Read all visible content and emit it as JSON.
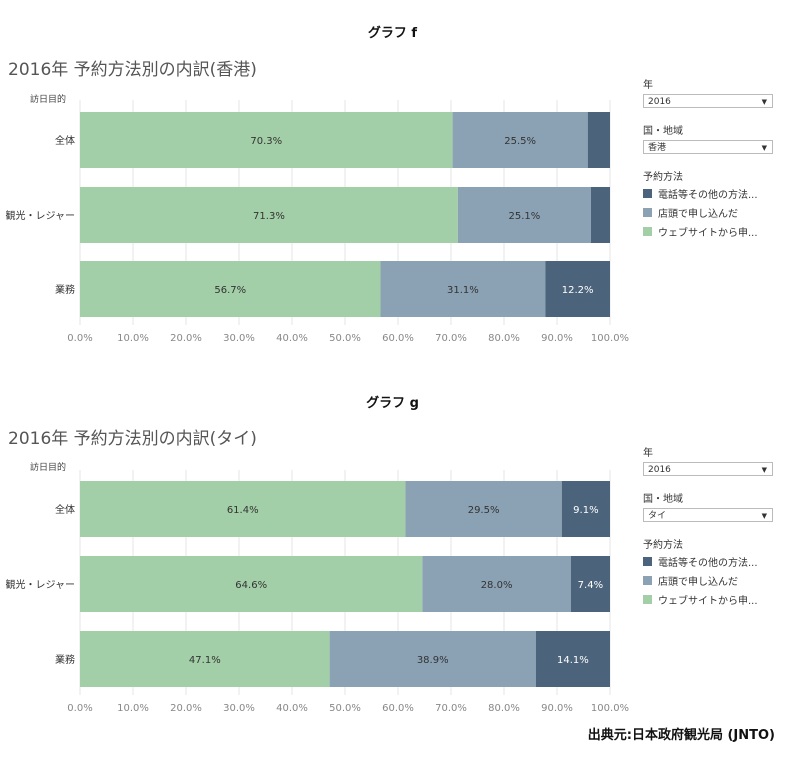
{
  "colors": {
    "web": "#a2cfa7",
    "store": "#8ba2b5",
    "phone": "#4c647b"
  },
  "chart_data": [
    {
      "type": "bar",
      "orientation": "horizontal",
      "stacked": true,
      "graph_label": "グラフ f",
      "title": "2016年 予約方法別の内訳(香港)",
      "ylabel": "訪日目的",
      "categories": [
        "全体",
        "観光・レジャー",
        "業務"
      ],
      "series": [
        {
          "name": "ウェブサイトから申...",
          "values": [
            70.3,
            71.3,
            56.7
          ],
          "labels": [
            "70.3%",
            "71.3%",
            "56.7%"
          ],
          "color": "#a2cfa7"
        },
        {
          "name": "店頭で申し込んだ",
          "values": [
            25.5,
            25.1,
            31.1
          ],
          "labels": [
            "25.5%",
            "25.1%",
            "31.1%"
          ],
          "color": "#8ba2b5"
        },
        {
          "name": "電話等その他の方法...",
          "values": [
            4.2,
            3.6,
            12.2
          ],
          "labels": [
            "",
            "",
            "12.2%"
          ],
          "color": "#4c647b"
        }
      ],
      "xticks": [
        "0.0%",
        "10.0%",
        "20.0%",
        "30.0%",
        "40.0%",
        "50.0%",
        "60.0%",
        "70.0%",
        "80.0%",
        "90.0%",
        "100.0%"
      ],
      "xlim": [
        0,
        100
      ],
      "filters": {
        "year_label": "年",
        "year_value": "2016",
        "region_label": "国・地域",
        "region_value": "香港",
        "method_label": "予約方法"
      }
    },
    {
      "type": "bar",
      "orientation": "horizontal",
      "stacked": true,
      "graph_label": "グラフ g",
      "title": "2016年 予約方法別の内訳(タイ)",
      "ylabel": "訪日目的",
      "categories": [
        "全体",
        "観光・レジャー",
        "業務"
      ],
      "series": [
        {
          "name": "ウェブサイトから申...",
          "values": [
            61.4,
            64.6,
            47.1
          ],
          "labels": [
            "61.4%",
            "64.6%",
            "47.1%"
          ],
          "color": "#a2cfa7"
        },
        {
          "name": "店頭で申し込んだ",
          "values": [
            29.5,
            28.0,
            38.9
          ],
          "labels": [
            "29.5%",
            "28.0%",
            "38.9%"
          ],
          "color": "#8ba2b5"
        },
        {
          "name": "電話等その他の方法...",
          "values": [
            9.1,
            7.4,
            14.1
          ],
          "labels": [
            "9.1%",
            "7.4%",
            "14.1%"
          ],
          "color": "#4c647b"
        }
      ],
      "xticks": [
        "0.0%",
        "10.0%",
        "20.0%",
        "30.0%",
        "40.0%",
        "50.0%",
        "60.0%",
        "70.0%",
        "80.0%",
        "90.0%",
        "100.0%"
      ],
      "xlim": [
        0,
        100
      ],
      "filters": {
        "year_label": "年",
        "year_value": "2016",
        "region_label": "国・地域",
        "region_value": "タイ",
        "method_label": "予約方法"
      }
    }
  ],
  "legend_order": [
    {
      "name": "電話等その他の方法...",
      "color": "#4c647b"
    },
    {
      "name": "店頭で申し込んだ",
      "color": "#8ba2b5"
    },
    {
      "name": "ウェブサイトから申...",
      "color": "#a2cfa7"
    }
  ],
  "source": "出典元:日本政府観光局 (JNTO)"
}
